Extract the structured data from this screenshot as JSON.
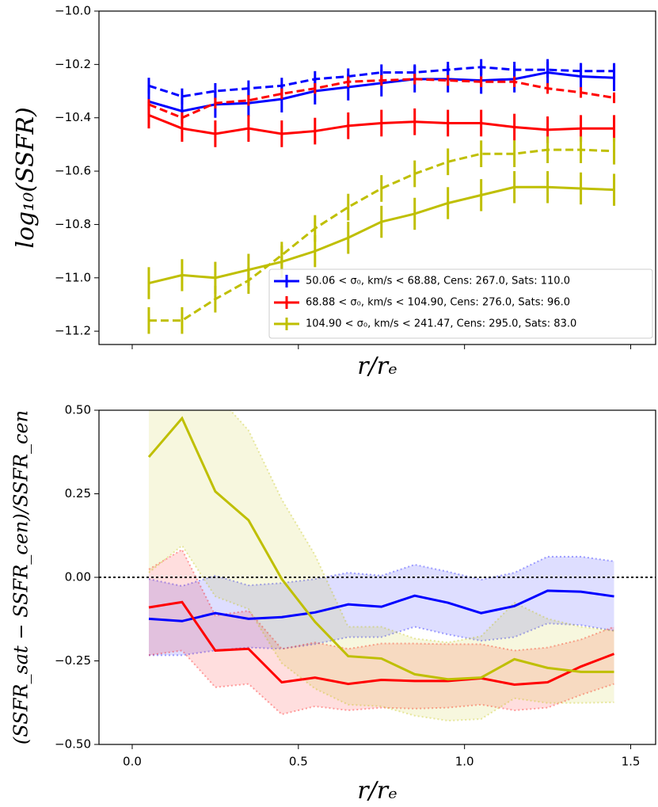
{
  "chart_data": [
    {
      "type": "errorbar",
      "xlabel": "r/rₑ",
      "ylabel": "log₁₀(SSFR)",
      "x": [
        0.05,
        0.15,
        0.25,
        0.35,
        0.45,
        0.55,
        0.65,
        0.75,
        0.85,
        0.95,
        1.05,
        1.15,
        1.25,
        1.35,
        1.45
      ],
      "xlim": [
        -0.1,
        1.575
      ],
      "ylim": [
        -11.25,
        -10.0
      ],
      "xticks": [
        0,
        0.5,
        1,
        1.5
      ],
      "yticks": [
        {
          "value": -10.0,
          "label": "−10.0"
        },
        {
          "value": -10.2,
          "label": "−10.2"
        },
        {
          "value": -10.4,
          "label": "−10.4"
        },
        {
          "value": -10.6,
          "label": "−10.6"
        },
        {
          "value": -10.8,
          "label": "−10.8"
        },
        {
          "value": -11.0,
          "label": "−11.0"
        },
        {
          "value": -11.2,
          "label": "−11.2"
        }
      ],
      "legend": "lower right",
      "series": [
        {
          "name": "50.06 < σ₀, km/s < 68.88, Cens: 267.0, Sats: 110.0",
          "color": "#0000ff",
          "linestyle": "solid",
          "values": [
            -10.339,
            -10.375,
            -10.35,
            -10.345,
            -10.33,
            -10.3,
            -10.285,
            -10.27,
            -10.255,
            -10.255,
            -10.26,
            -10.255,
            -10.23,
            -10.245,
            -10.25
          ],
          "errors": [
            0.05,
            0.05,
            0.05,
            0.05,
            0.05,
            0.05,
            0.05,
            0.05,
            0.05,
            0.05,
            0.05,
            0.05,
            0.05,
            0.05,
            0.05
          ]
        },
        {
          "color": "#0000ff",
          "linestyle": "dashed",
          "values": [
            -10.28,
            -10.32,
            -10.3,
            -10.29,
            -10.28,
            -10.255,
            -10.245,
            -10.23,
            -10.23,
            -10.22,
            -10.21,
            -10.22,
            -10.22,
            -10.225,
            -10.225
          ],
          "errors": [
            0.03,
            0.03,
            0.03,
            0.03,
            0.03,
            0.03,
            0.03,
            0.03,
            0.03,
            0.03,
            0.03,
            0.03,
            0.03,
            0.03,
            0.03
          ]
        },
        {
          "name": "68.88 < σ₀, km/s < 104.90, Cens: 276.0, Sats: 96.0",
          "color": "#ff0000",
          "linestyle": "solid",
          "values": [
            -10.39,
            -10.44,
            -10.46,
            -10.44,
            -10.46,
            -10.45,
            -10.43,
            -10.42,
            -10.415,
            -10.42,
            -10.42,
            -10.435,
            -10.445,
            -10.44,
            -10.44
          ],
          "errors": [
            0.05,
            0.05,
            0.05,
            0.05,
            0.05,
            0.05,
            0.05,
            0.05,
            0.05,
            0.05,
            0.05,
            0.05,
            0.05,
            0.05,
            0.05
          ]
        },
        {
          "color": "#ff0000",
          "linestyle": "dashed",
          "values": [
            -10.35,
            -10.4,
            -10.345,
            -10.335,
            -10.31,
            -10.29,
            -10.265,
            -10.26,
            -10.255,
            -10.26,
            -10.265,
            -10.265,
            -10.29,
            -10.305,
            -10.325
          ],
          "errors": [
            0.02,
            0.02,
            0.02,
            0.02,
            0.02,
            0.02,
            0.02,
            0.02,
            0.02,
            0.02,
            0.02,
            0.02,
            0.02,
            0.02,
            0.02
          ]
        },
        {
          "name": "104.90 < σ₀, km/s < 241.47, Cens: 295.0, Sats: 83.0",
          "color": "#bfbf00",
          "linestyle": "solid",
          "values": [
            -11.02,
            -10.99,
            -11.0,
            -10.97,
            -10.94,
            -10.9,
            -10.85,
            -10.79,
            -10.76,
            -10.72,
            -10.69,
            -10.66,
            -10.66,
            -10.665,
            -10.67
          ],
          "errors": [
            0.06,
            0.06,
            0.06,
            0.06,
            0.06,
            0.06,
            0.06,
            0.06,
            0.06,
            0.06,
            0.06,
            0.06,
            0.06,
            0.06,
            0.06
          ]
        },
        {
          "color": "#bfbf00",
          "linestyle": "dashed",
          "values": [
            -11.16,
            -11.16,
            -11.08,
            -11.01,
            -10.915,
            -10.815,
            -10.735,
            -10.665,
            -10.61,
            -10.565,
            -10.535,
            -10.535,
            -10.52,
            -10.52,
            -10.525
          ],
          "errors": [
            0.05,
            0.05,
            0.05,
            0.05,
            0.05,
            0.05,
            0.05,
            0.05,
            0.05,
            0.05,
            0.05,
            0.05,
            0.05,
            0.05,
            0.05
          ]
        }
      ]
    },
    {
      "type": "band",
      "xlabel": "r/rₑ",
      "ylabel": "(SSFR_sat − SSFR_cen)/SSFR_cen",
      "x": [
        0.05,
        0.15,
        0.25,
        0.35,
        0.45,
        0.55,
        0.65,
        0.75,
        0.85,
        0.95,
        1.05,
        1.15,
        1.25,
        1.35,
        1.45
      ],
      "xlim": [
        -0.1,
        1.575
      ],
      "ylim": [
        -0.5,
        0.5
      ],
      "xticks": [
        {
          "value": 0,
          "label": "0.0"
        },
        0.5,
        {
          "value": 1,
          "label": "1.0"
        },
        1.5
      ],
      "yticks": [
        {
          "value": 0.5,
          "label": "0.50"
        },
        0.25,
        {
          "value": 0,
          "label": "0.00"
        },
        {
          "value": -0.25,
          "label": "−0.25"
        },
        {
          "value": -0.5,
          "label": "−0.50"
        }
      ],
      "reference_line": 0,
      "series": [
        {
          "color": "#0000ff",
          "values": [
            -0.124,
            -0.131,
            -0.107,
            -0.124,
            -0.119,
            -0.105,
            -0.081,
            -0.088,
            -0.055,
            -0.076,
            -0.107,
            -0.086,
            -0.04,
            -0.043,
            -0.057
          ],
          "upper": [
            -0.005,
            -0.026,
            0.005,
            -0.024,
            -0.017,
            -0.005,
            0.014,
            0.005,
            0.038,
            0.017,
            -0.007,
            0.014,
            0.062,
            0.062,
            0.048
          ],
          "lower": [
            -0.233,
            -0.233,
            -0.219,
            -0.21,
            -0.214,
            -0.2,
            -0.179,
            -0.179,
            -0.148,
            -0.171,
            -0.19,
            -0.179,
            -0.138,
            -0.143,
            -0.16
          ]
        },
        {
          "color": "#ff0000",
          "values": [
            -0.09,
            -0.074,
            -0.219,
            -0.214,
            -0.314,
            -0.3,
            -0.319,
            -0.307,
            -0.31,
            -0.31,
            -0.302,
            -0.321,
            -0.314,
            -0.267,
            -0.229
          ],
          "upper": [
            0.024,
            0.083,
            -0.114,
            -0.1,
            -0.214,
            -0.195,
            -0.214,
            -0.198,
            -0.198,
            -0.2,
            -0.2,
            -0.219,
            -0.21,
            -0.186,
            -0.148
          ],
          "lower": [
            -0.233,
            -0.219,
            -0.329,
            -0.319,
            -0.41,
            -0.386,
            -0.398,
            -0.39,
            -0.393,
            -0.39,
            -0.381,
            -0.398,
            -0.39,
            -0.352,
            -0.319
          ]
        },
        {
          "color": "#bfbf00",
          "values": [
            0.36,
            0.476,
            0.257,
            0.171,
            -0.005,
            -0.133,
            -0.236,
            -0.243,
            -0.29,
            -0.305,
            -0.3,
            -0.245,
            -0.271,
            -0.283,
            -0.283
          ],
          "upper": [
            0.7,
            0.8,
            0.55,
            0.44,
            0.233,
            0.067,
            -0.148,
            -0.148,
            -0.183,
            -0.195,
            -0.176,
            -0.076,
            -0.124,
            -0.148,
            -0.16
          ],
          "lower": [
            0.014,
            0.095,
            -0.057,
            -0.095,
            -0.257,
            -0.333,
            -0.381,
            -0.386,
            -0.414,
            -0.429,
            -0.424,
            -0.362,
            -0.376,
            -0.376,
            -0.374
          ]
        }
      ]
    }
  ]
}
